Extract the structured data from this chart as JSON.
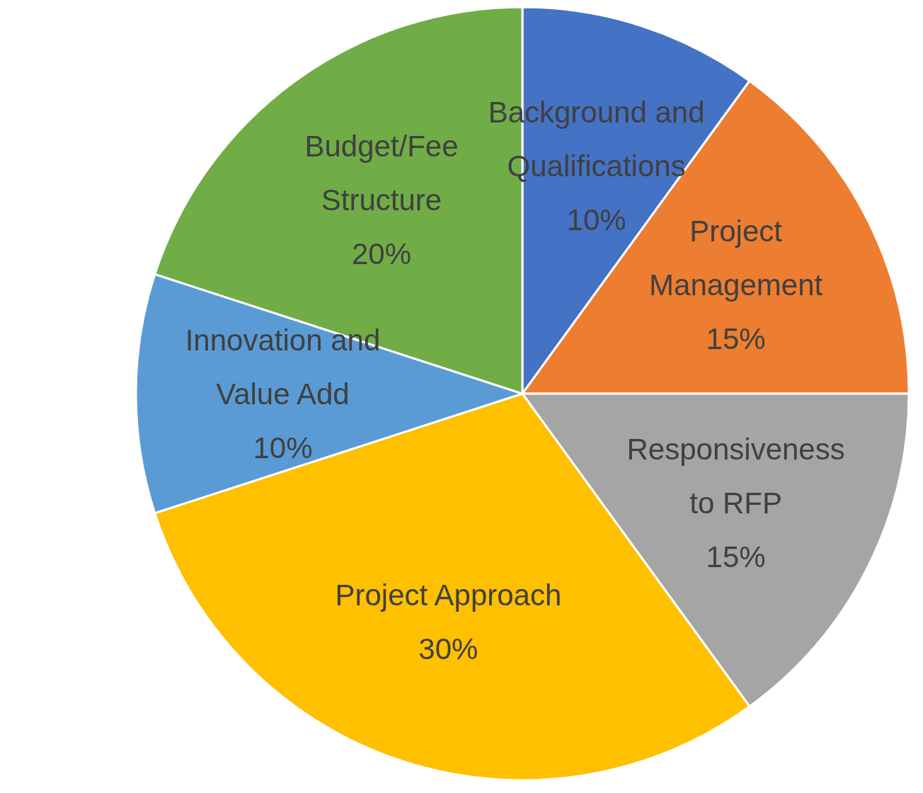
{
  "chart_data": {
    "type": "pie",
    "categories": [
      "Background and Qualifications",
      "Project Management",
      "Responsiveness to RFP",
      "Project Approach",
      "Innovation and Value Add",
      "Budget/Fee Structure"
    ],
    "values": [
      10,
      15,
      15,
      30,
      10,
      20
    ],
    "value_labels": [
      "10%",
      "15%",
      "15%",
      "30%",
      "10%",
      "20%"
    ],
    "colors": [
      "#4472c4",
      "#ed7d31",
      "#a5a5a5",
      "#ffc000",
      "#5b9bd5",
      "#70ad47"
    ],
    "legend": false
  }
}
